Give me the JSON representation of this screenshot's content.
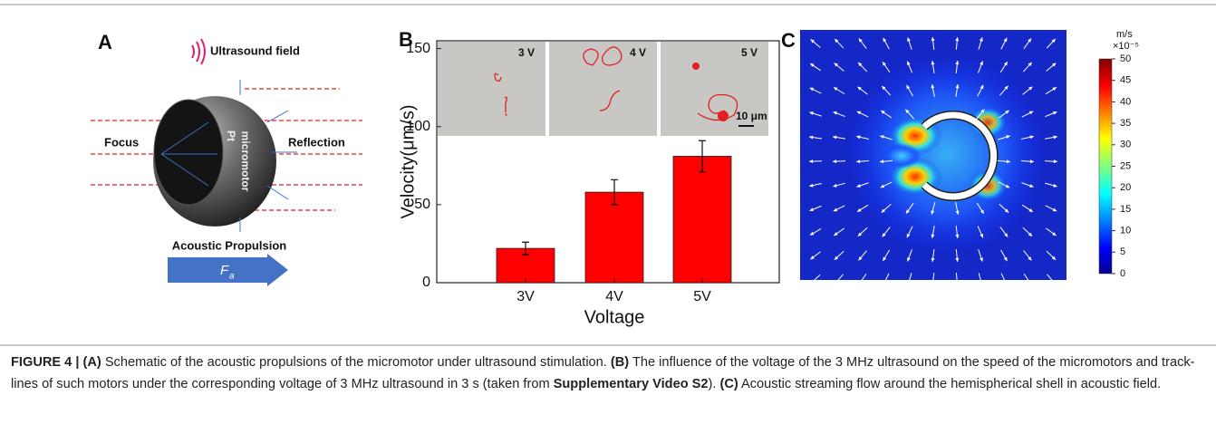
{
  "panel_a": {
    "label": "A",
    "field_label": "Ultrasound field",
    "focus_label": "Focus",
    "reflection_label": "Reflection",
    "material_label": "Pt",
    "body_label": "micromotor",
    "propulsion_label": "Acoustic Propulsion",
    "force_symbol": "F",
    "force_subscript": "a"
  },
  "chart_data": {
    "type": "bar",
    "panel_label": "B",
    "categories": [
      "3V",
      "4V",
      "5V"
    ],
    "values": [
      22,
      58,
      81
    ],
    "errors": [
      4,
      8,
      10
    ],
    "color": "#ff0000",
    "xlabel": "Voltage",
    "ylabel": "Velocity(μm/s)",
    "ylim": [
      0,
      155
    ],
    "yticks": [
      0,
      50,
      100,
      150
    ],
    "inset_labels": [
      "3 V",
      "4 V",
      "5 V"
    ],
    "scale_bar": "10 μm"
  },
  "panel_c": {
    "label": "C",
    "unit": "m/s",
    "multiplier": "×10⁻⁵",
    "colorbar_lim": [
      0,
      50
    ],
    "colorbar_ticks": [
      0,
      5,
      10,
      15,
      20,
      25,
      30,
      35,
      40,
      45,
      50
    ]
  },
  "caption": {
    "segments": [
      {
        "text": "FIGURE 4 | ",
        "bold": true
      },
      {
        "text": "(A)",
        "bold": true
      },
      {
        "text": " Schematic of the acoustic propulsions of the micromotor under ultrasound stimulation. ",
        "bold": false
      },
      {
        "text": "(B)",
        "bold": true
      },
      {
        "text": " The influence of the voltage of the 3 MHz ultrasound on the speed of the micromotors and track-lines of such motors under the corresponding voltage of 3 MHz ultrasound in 3 s (taken from ",
        "bold": false
      },
      {
        "text": "Supplementary Video S2",
        "bold": true
      },
      {
        "text": "). ",
        "bold": false
      },
      {
        "text": "(C)",
        "bold": true
      },
      {
        "text": " Acoustic streaming flow around the hemispherical shell in acoustic field.",
        "bold": false
      }
    ]
  }
}
